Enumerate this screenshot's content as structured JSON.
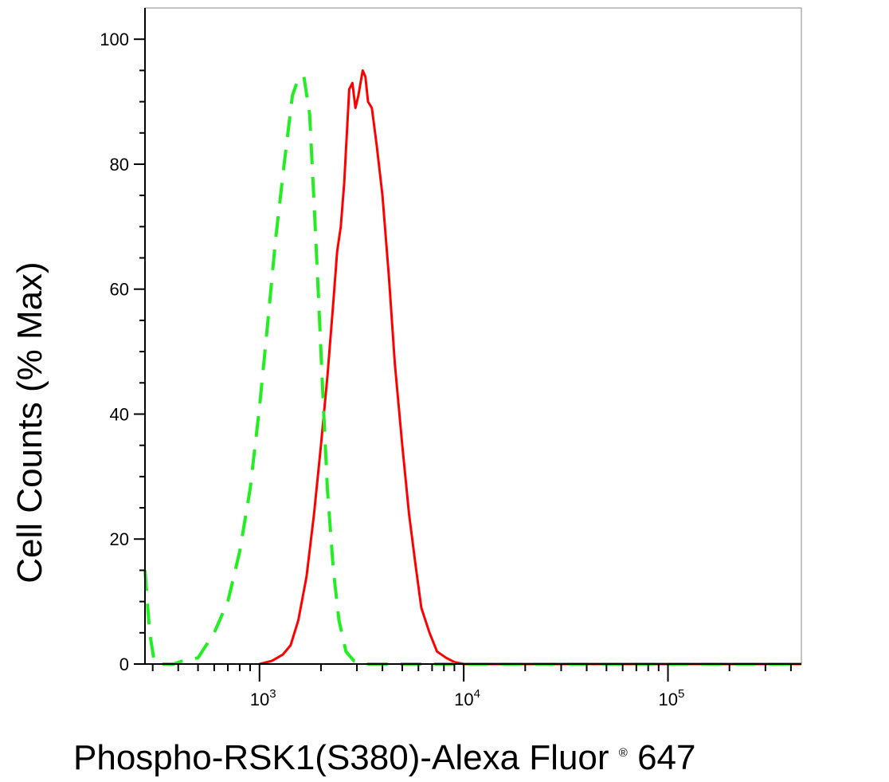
{
  "chart_data": {
    "type": "line",
    "title": "",
    "xlabel": "Phospho-RSK1(S380)-Alexa Fluor",
    "xlabel_mark": "®",
    "xlabel_suffix": " 647",
    "ylabel": "Cell Counts (% Max)",
    "xscale": "log",
    "xlim": [
      275,
      450000
    ],
    "ylim": [
      0,
      105
    ],
    "x_ticks": [
      {
        "value": 1000,
        "base": "10",
        "exp": "3"
      },
      {
        "value": 10000,
        "base": "10",
        "exp": "4"
      },
      {
        "value": 100000,
        "base": "10",
        "exp": "5"
      }
    ],
    "y_ticks": [
      0,
      20,
      40,
      60,
      80,
      100
    ],
    "grid": false,
    "series": [
      {
        "style": "solid",
        "color": "#ff0000",
        "x": [
          1000,
          1150,
          1300,
          1420,
          1550,
          1700,
          1850,
          2000,
          2150,
          2300,
          2400,
          2500,
          2600,
          2750,
          2850,
          2950,
          3050,
          3200,
          3300,
          3400,
          3550,
          3750,
          4000,
          4300,
          4600,
          5000,
          5400,
          5800,
          6200,
          6800,
          7400,
          8200,
          9000,
          10000,
          15000,
          50000,
          150000,
          450000
        ],
        "y": [
          0,
          0.5,
          1.5,
          3,
          7,
          14,
          24,
          35,
          46,
          58,
          66,
          70,
          77,
          92,
          93,
          89,
          91,
          95,
          94,
          90,
          89,
          83,
          75,
          62,
          48,
          35,
          24,
          16,
          9,
          5,
          2,
          1,
          0.3,
          0,
          0,
          0,
          0,
          0
        ]
      },
      {
        "style": "dashed",
        "color": "#22ee22",
        "x": [
          275,
          290,
          305,
          320,
          340,
          380,
          420,
          500,
          600,
          700,
          800,
          900,
          1000,
          1100,
          1200,
          1320,
          1450,
          1560,
          1650,
          1760,
          1850,
          1950,
          2050,
          2150,
          2300,
          2450,
          2650,
          2900,
          3300,
          4000,
          6000,
          10000,
          50000,
          450000
        ],
        "y": [
          15,
          5,
          0.5,
          0,
          0,
          0,
          0.5,
          1,
          5,
          10,
          18,
          28,
          41,
          55,
          68,
          80,
          91,
          94,
          94,
          88,
          74,
          58,
          42,
          28,
          15,
          7,
          2,
          0.5,
          0,
          0,
          0,
          0,
          0,
          0
        ]
      }
    ]
  }
}
